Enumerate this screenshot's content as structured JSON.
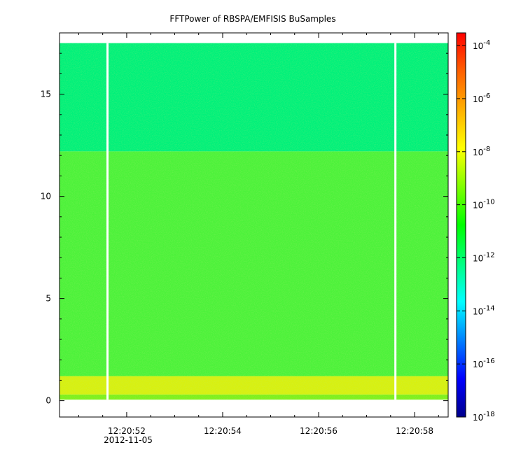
{
  "chart_data": {
    "type": "heatmap",
    "title": "FFTPower of RBSPA/EMFISIS  BuSamples",
    "xlabel": "",
    "ylabel": "",
    "x_axis": {
      "kind": "time",
      "range": [
        "12:20:50.6",
        "12:20:58.7"
      ],
      "major_ticks": [
        "12:20:52",
        "12:20:54",
        "12:20:56",
        "12:20:58"
      ],
      "date_label": "2012-11-05"
    },
    "y_axis": {
      "range": [
        -0.8,
        18.0
      ],
      "ticks": [
        0,
        5,
        10,
        15
      ]
    },
    "colorbar": {
      "scale": "log",
      "range": [
        1e-18,
        0.0003
      ],
      "tick_exponents": [
        -18,
        -16,
        -14,
        -12,
        -10,
        -8,
        -6,
        -4
      ],
      "tick_base": "10",
      "colormap": [
        "#00008b",
        "#0000ff",
        "#0080ff",
        "#00ffff",
        "#00ff80",
        "#00ff00",
        "#80ff00",
        "#ffff00",
        "#ffb000",
        "#ff6000",
        "#ff0000"
      ]
    },
    "data_extent": {
      "y_max": 17.5,
      "y_min": 0.05
    },
    "bands": [
      {
        "y_from": 12.2,
        "y_to": 17.5,
        "level_log10": -12.3,
        "color": "#00f07a"
      },
      {
        "y_from": 1.2,
        "y_to": 12.2,
        "level_log10": -10.2,
        "color": "#4cf23a"
      },
      {
        "y_from": 0.3,
        "y_to": 1.2,
        "level_log10": -8.8,
        "color": "#d8f010"
      },
      {
        "y_from": 0.05,
        "y_to": 0.3,
        "level_log10": -9.8,
        "color": "#7ef01c"
      }
    ],
    "data_gaps": [
      "12:20:51.6",
      "12:20:57.6"
    ]
  }
}
